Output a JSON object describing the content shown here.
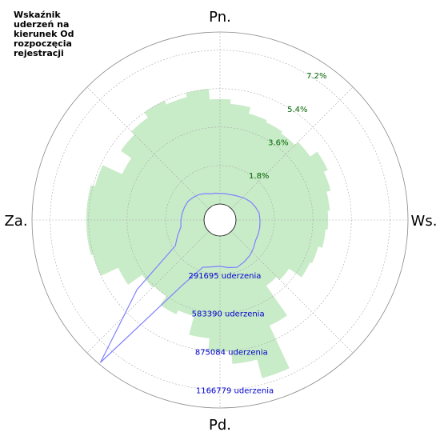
{
  "chart_data": {
    "type": "polar",
    "title": "Wskaźnik uderzeń na kierunek Od rozpoczęcia rejestracji",
    "xticks": [
      {
        "value": 0,
        "label": "Pn."
      },
      {
        "value": 90,
        "label": "Ws."
      },
      {
        "value": 180,
        "label": "Pd."
      },
      {
        "value": 270,
        "label": "Za."
      }
    ],
    "x": [
      0,
      10,
      20,
      30,
      40,
      50,
      60,
      70,
      80,
      90,
      100,
      110,
      120,
      130,
      140,
      150,
      160,
      170,
      180,
      190,
      200,
      210,
      220,
      230,
      240,
      250,
      260,
      270,
      280,
      290,
      300,
      310,
      320,
      330,
      340,
      350
    ],
    "ylim": [
      0,
      8.05
    ],
    "yticks": [
      {
        "value": 1.8,
        "label": "1.8%"
      },
      {
        "value": 3.6,
        "label": "3.6%"
      },
      {
        "value": 5.4,
        "label": "5.4%"
      },
      {
        "value": 7.2,
        "label": "7.2%"
      }
    ],
    "y2lim": [
      0,
      1304527
    ],
    "y2ticks": [
      {
        "value": 291695,
        "label": "291695 uderzenia"
      },
      {
        "value": 583390,
        "label": "583390 uderzenia"
      },
      {
        "value": 875084,
        "label": "875084 uderzenia"
      },
      {
        "value": 1166779,
        "label": "1166779 uderzenia"
      }
    ],
    "grid": true,
    "series": [
      {
        "type": "bar",
        "color": "#c8ebc8",
        "values": [
          4.9,
          4.7,
          4.4,
          4.3,
          4.2,
          4.4,
          4.8,
          4.6,
          4.4,
          4.3,
          4.2,
          4.0,
          3.9,
          3.2,
          3.0,
          4.7,
          6.9,
          6.0,
          5.4,
          4.8,
          3.9,
          4.1,
          3.6,
          3.7,
          4.5,
          5.4,
          5.5,
          5.5,
          5.5,
          5.3,
          4.3,
          4.9,
          5.1,
          5.4,
          5.2,
          5.4
        ]
      },
      {
        "type": "line",
        "axis": "y2",
        "color": "#8080ff",
        "values": [
          80000,
          82000,
          85000,
          95000,
          110000,
          130000,
          150000,
          165000,
          180000,
          182000,
          185000,
          188000,
          190000,
          210000,
          230000,
          245000,
          260000,
          245000,
          230000,
          240000,
          260000,
          450000,
          1290000,
          700000,
          270000,
          220000,
          180000,
          175000,
          170000,
          165000,
          160000,
          145000,
          130000,
          110000,
          90000,
          85000
        ]
      }
    ]
  }
}
